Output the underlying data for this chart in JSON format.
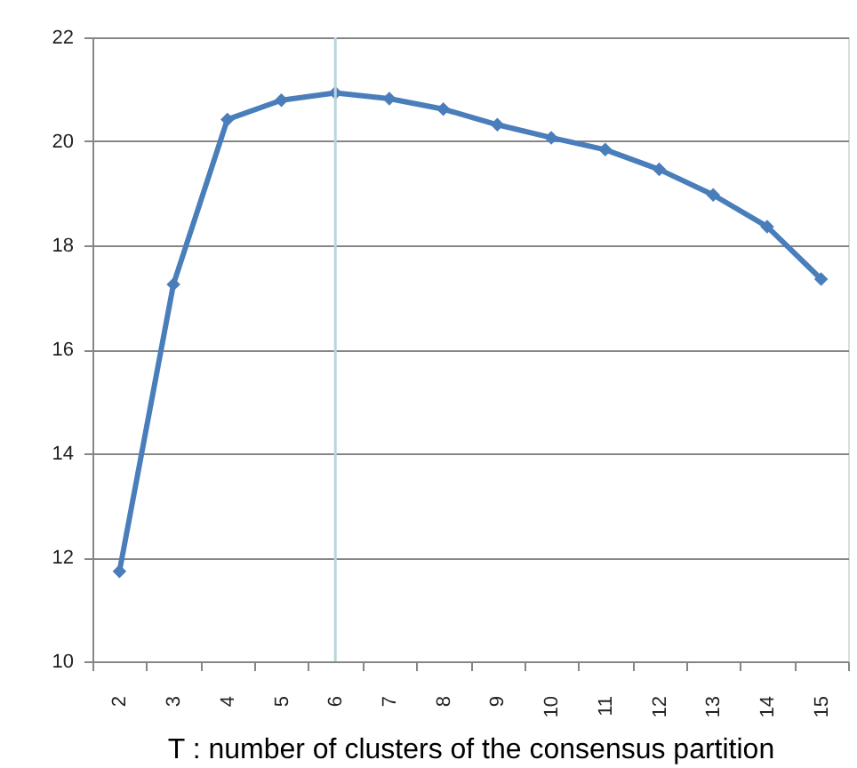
{
  "chart_data": {
    "type": "line",
    "xlabel": "T : number of clusters of the consensus partition",
    "categories": [
      "2",
      "3",
      "4",
      "5",
      "6",
      "7",
      "8",
      "9",
      "10",
      "11",
      "12",
      "13",
      "14",
      "15"
    ],
    "series": [
      {
        "color": "#4a7ebb",
        "values": [
          11.73,
          17.25,
          20.42,
          20.79,
          20.93,
          20.82,
          20.62,
          20.32,
          20.07,
          19.84,
          19.46,
          18.97,
          18.36,
          17.35
        ]
      }
    ],
    "ylim": [
      10,
      22
    ],
    "yticks": [
      10,
      12,
      14,
      16,
      18,
      20,
      22
    ],
    "grid": "y",
    "marker": "diamond",
    "line_style": "solid",
    "ref_lines": [
      {
        "axis": "x",
        "value": "6",
        "color": "#b9d5e0"
      }
    ]
  }
}
